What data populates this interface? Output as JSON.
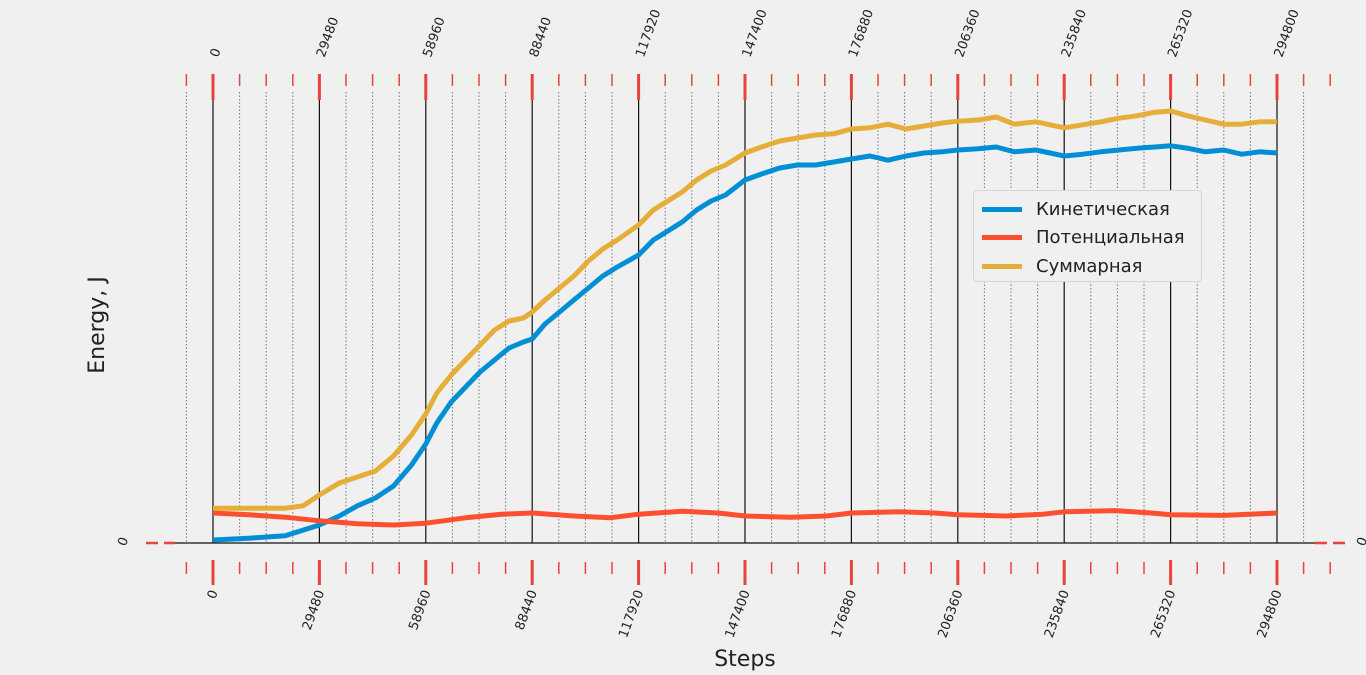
{
  "chart_data": {
    "type": "line",
    "xlabel": "Steps",
    "ylabel": "Energy, J",
    "x_ticks": [
      0,
      29480,
      58960,
      88440,
      117920,
      147400,
      176880,
      206360,
      235840,
      265320,
      294800
    ],
    "y_ticks": [
      0
    ],
    "y_tick_right": "0",
    "xlim": [
      -10000,
      305000
    ],
    "grid": "vertical",
    "legend_position": "center-right",
    "series": [
      {
        "name": "Кинетическая",
        "color": "#008fd5",
        "x": [
          0,
          10000,
          20000,
          29480,
          35000,
          40000,
          45000,
          50000,
          55000,
          58960,
          62000,
          66000,
          70000,
          74000,
          78000,
          82000,
          86000,
          88440,
          92000,
          96000,
          100000,
          104000,
          108000,
          112000,
          117920,
          122000,
          126000,
          130000,
          134000,
          138000,
          142000,
          147400,
          152000,
          157000,
          162000,
          167000,
          172000,
          176880,
          182000,
          187000,
          192000,
          197000,
          202000,
          206360,
          212000,
          217000,
          222000,
          228000,
          235840,
          241000,
          246000,
          251000,
          256000,
          261000,
          265320,
          270000,
          275000,
          280000,
          285000,
          290000,
          294800
        ],
        "y": [
          0.05,
          0.08,
          0.12,
          0.3,
          0.45,
          0.62,
          0.75,
          0.95,
          1.3,
          1.65,
          2.0,
          2.35,
          2.6,
          2.85,
          3.05,
          3.25,
          3.35,
          3.4,
          3.65,
          3.85,
          4.05,
          4.25,
          4.45,
          4.6,
          4.8,
          5.05,
          5.2,
          5.35,
          5.55,
          5.7,
          5.8,
          6.05,
          6.15,
          6.25,
          6.3,
          6.3,
          6.35,
          6.4,
          6.45,
          6.38,
          6.45,
          6.5,
          6.52,
          6.55,
          6.57,
          6.6,
          6.52,
          6.55,
          6.45,
          6.48,
          6.52,
          6.55,
          6.58,
          6.6,
          6.62,
          6.58,
          6.52,
          6.55,
          6.48,
          6.52,
          6.5
        ]
      },
      {
        "name": "Потенциальная",
        "color": "#fc4f30",
        "x": [
          0,
          10000,
          20000,
          29480,
          40000,
          50000,
          58960,
          70000,
          80000,
          88440,
          100000,
          110000,
          117920,
          130000,
          140000,
          147400,
          160000,
          170000,
          176880,
          190000,
          200000,
          206360,
          220000,
          230000,
          235840,
          250000,
          260000,
          265320,
          280000,
          294800
        ],
        "y": [
          0.5,
          0.47,
          0.43,
          0.37,
          0.32,
          0.3,
          0.33,
          0.42,
          0.48,
          0.5,
          0.45,
          0.42,
          0.48,
          0.53,
          0.5,
          0.45,
          0.43,
          0.45,
          0.5,
          0.52,
          0.5,
          0.47,
          0.45,
          0.48,
          0.52,
          0.54,
          0.5,
          0.47,
          0.46,
          0.5
        ]
      },
      {
        "name": "Суммарная",
        "color": "#e5ae38",
        "x": [
          0,
          10000,
          20000,
          25000,
          29480,
          35000,
          40000,
          45000,
          50000,
          55000,
          58960,
          62000,
          66000,
          70000,
          74000,
          78000,
          82000,
          86000,
          88440,
          92000,
          96000,
          100000,
          104000,
          108000,
          112000,
          117920,
          122000,
          126000,
          130000,
          134000,
          138000,
          142000,
          147400,
          152000,
          157000,
          162000,
          167000,
          172000,
          176880,
          182000,
          187000,
          192000,
          197000,
          202000,
          206360,
          212000,
          217000,
          222000,
          228000,
          235840,
          241000,
          246000,
          251000,
          256000,
          261000,
          265320,
          270000,
          275000,
          280000,
          285000,
          290000,
          294800
        ],
        "y": [
          0.58,
          0.58,
          0.58,
          0.62,
          0.8,
          1.0,
          1.1,
          1.2,
          1.45,
          1.8,
          2.15,
          2.5,
          2.8,
          3.05,
          3.3,
          3.55,
          3.7,
          3.75,
          3.85,
          4.05,
          4.25,
          4.45,
          4.7,
          4.9,
          5.05,
          5.3,
          5.55,
          5.7,
          5.85,
          6.05,
          6.2,
          6.3,
          6.5,
          6.6,
          6.7,
          6.75,
          6.8,
          6.82,
          6.9,
          6.92,
          6.98,
          6.9,
          6.95,
          7.0,
          7.03,
          7.05,
          7.1,
          6.98,
          7.02,
          6.92,
          6.97,
          7.02,
          7.08,
          7.12,
          7.18,
          7.2,
          7.12,
          7.05,
          6.98,
          6.98,
          7.02,
          7.02
        ]
      }
    ]
  }
}
